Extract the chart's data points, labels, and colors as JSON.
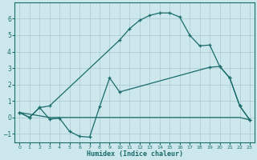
{
  "xlabel": "Humidex (Indice chaleur)",
  "background_color": "#cce8ec",
  "grid_color": "#b0cdd4",
  "line_color": "#1a6b6b",
  "line1_x": [
    0,
    1,
    2,
    3,
    10,
    11,
    12,
    13,
    14,
    15,
    16,
    17,
    18,
    19,
    20,
    21,
    22,
    23
  ],
  "line1_y": [
    0.3,
    0.0,
    0.6,
    0.7,
    4.7,
    5.4,
    5.9,
    6.2,
    6.35,
    6.35,
    6.1,
    5.0,
    4.35,
    4.4,
    3.1,
    2.4,
    0.7,
    -0.15
  ],
  "line2_x": [
    0,
    1,
    2,
    3,
    4,
    5,
    6,
    7,
    8,
    9,
    10,
    19,
    20,
    21,
    22,
    23
  ],
  "line2_y": [
    0.3,
    0.0,
    0.6,
    -0.1,
    -0.05,
    -0.85,
    -1.15,
    -1.2,
    0.65,
    2.4,
    1.55,
    3.05,
    3.1,
    2.4,
    0.7,
    -0.15
  ],
  "line3_x": [
    0,
    3,
    22,
    23
  ],
  "line3_y": [
    0.3,
    0.0,
    0.0,
    -0.15
  ],
  "ylim": [
    -1.5,
    7.0
  ],
  "xlim": [
    -0.5,
    23.5
  ],
  "yticks": [
    -1,
    0,
    1,
    2,
    3,
    4,
    5,
    6
  ],
  "xticks": [
    0,
    1,
    2,
    3,
    4,
    5,
    6,
    7,
    8,
    9,
    10,
    11,
    12,
    13,
    14,
    15,
    16,
    17,
    18,
    19,
    20,
    21,
    22,
    23
  ],
  "figwidth": 3.2,
  "figheight": 2.0,
  "dpi": 100
}
